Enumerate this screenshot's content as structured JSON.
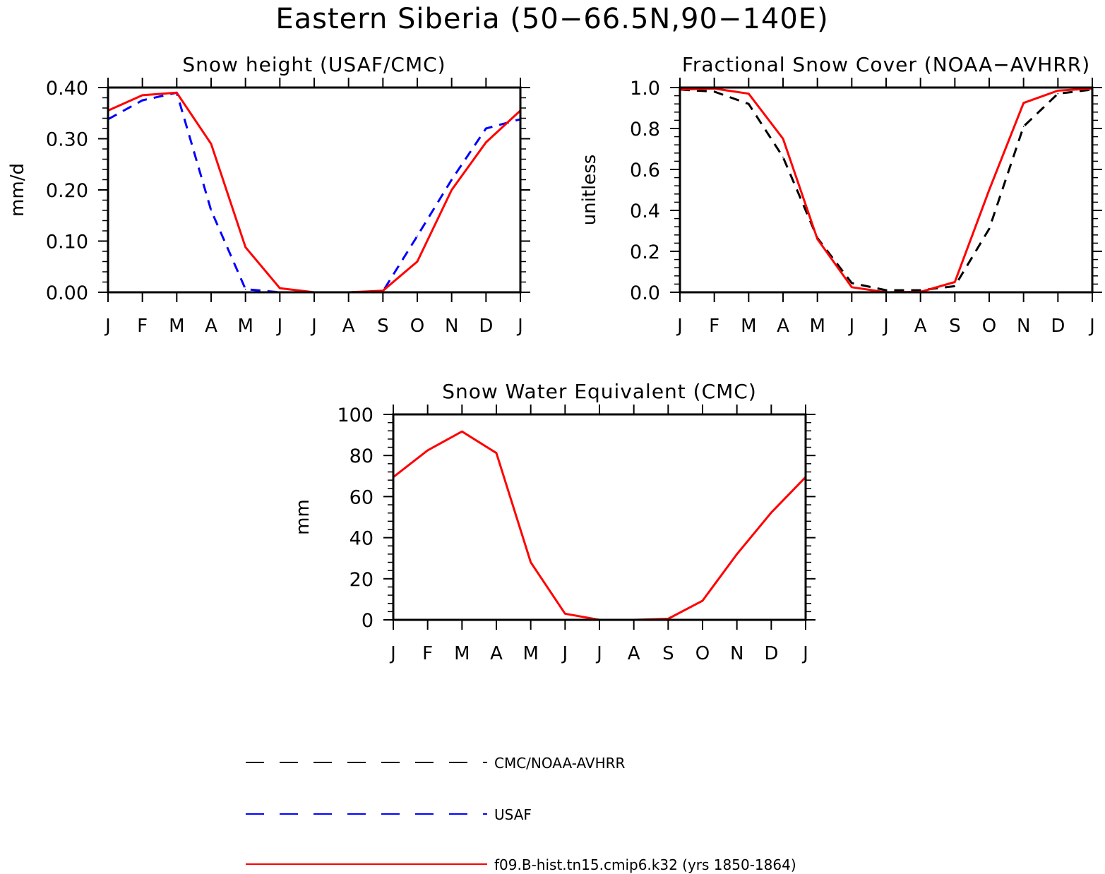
{
  "figure_title": "Eastern Siberia (50−66.5N,90−140E)",
  "colors": {
    "model": "#ff0000",
    "usaf": "#0000ff",
    "obs": "#000000"
  },
  "legend": [
    {
      "label": "CMC/NOAA-AVHRR",
      "color": "#000000",
      "dash": true
    },
    {
      "label": "USAF",
      "color": "#0000ff",
      "dash": true
    },
    {
      "label": "f09.B-hist.tn15.cmip6.k32 (yrs 1850-1864)",
      "color": "#ff0000",
      "dash": false
    }
  ],
  "chart_data": [
    {
      "type": "line",
      "title": "Snow height (USAF/CMC)",
      "xlabel": "",
      "ylabel": "mm/d",
      "categories": [
        "J",
        "F",
        "M",
        "A",
        "M",
        "J",
        "J",
        "A",
        "S",
        "O",
        "N",
        "D",
        "J"
      ],
      "ylim": [
        0,
        0.4
      ],
      "yticks": [
        "0.00",
        "0.10",
        "0.20",
        "0.30",
        "0.40"
      ],
      "series": [
        {
          "name": "f09.B-hist.tn15.cmip6.k32 (yrs 1850-1864)",
          "color": "#ff0000",
          "dash": false,
          "values": [
            0.355,
            0.385,
            0.39,
            0.29,
            0.088,
            0.008,
            0.0,
            0.0,
            0.003,
            0.06,
            0.2,
            0.293,
            0.355
          ]
        },
        {
          "name": "USAF",
          "color": "#0000ff",
          "dash": true,
          "values": [
            0.338,
            0.375,
            0.39,
            0.16,
            0.006,
            0.0,
            0.0,
            0.0,
            0.002,
            0.11,
            0.22,
            0.32,
            0.338
          ]
        },
        {
          "name": "CMC/NOAA-AVHRR",
          "color": "#000000",
          "dash": true,
          "values": [
            0,
            0,
            0,
            0,
            0,
            0,
            0,
            0,
            0,
            0,
            0,
            0,
            0
          ]
        }
      ]
    },
    {
      "type": "line",
      "title": "Fractional Snow Cover (NOAA−AVHRR)",
      "xlabel": "",
      "ylabel": "unitless",
      "categories": [
        "J",
        "F",
        "M",
        "A",
        "M",
        "J",
        "J",
        "A",
        "S",
        "O",
        "N",
        "D",
        "J"
      ],
      "ylim": [
        0,
        1.0
      ],
      "yticks": [
        "0.0",
        "0.2",
        "0.4",
        "0.6",
        "0.8",
        "1.0"
      ],
      "series": [
        {
          "name": "f09.B-hist.tn15.cmip6.k32 (yrs 1850-1864)",
          "color": "#ff0000",
          "dash": false,
          "values": [
            0.99,
            0.995,
            0.97,
            0.75,
            0.26,
            0.025,
            0.0,
            0.002,
            0.05,
            0.5,
            0.925,
            0.985,
            0.995
          ]
        },
        {
          "name": "CMC/NOAA-AVHRR",
          "color": "#000000",
          "dash": true,
          "values": [
            0.99,
            0.98,
            0.92,
            0.66,
            0.265,
            0.045,
            0.01,
            0.01,
            0.03,
            0.31,
            0.81,
            0.97,
            0.99
          ]
        }
      ]
    },
    {
      "type": "line",
      "title": "Snow Water Equivalent (CMC)",
      "xlabel": "",
      "ylabel": "mm",
      "categories": [
        "J",
        "F",
        "M",
        "A",
        "M",
        "J",
        "J",
        "A",
        "S",
        "O",
        "N",
        "D",
        "J"
      ],
      "ylim": [
        0,
        100
      ],
      "yticks": [
        "0",
        "20",
        "40",
        "60",
        "80",
        "100"
      ],
      "series": [
        {
          "name": "f09.B-hist.tn15.cmip6.k32 (yrs 1850-1864)",
          "color": "#ff0000",
          "dash": false,
          "values": [
            69.5,
            82.5,
            91.7,
            81.2,
            28.0,
            3.0,
            0.0,
            0.0,
            0.5,
            9.3,
            32.0,
            52.2,
            69.5
          ]
        },
        {
          "name": "CMC/NOAA-AVHRR",
          "color": "#000000",
          "dash": true,
          "values": [
            0,
            0,
            0,
            0,
            0,
            0,
            0,
            0,
            0,
            0,
            0,
            0,
            0
          ]
        }
      ]
    }
  ]
}
